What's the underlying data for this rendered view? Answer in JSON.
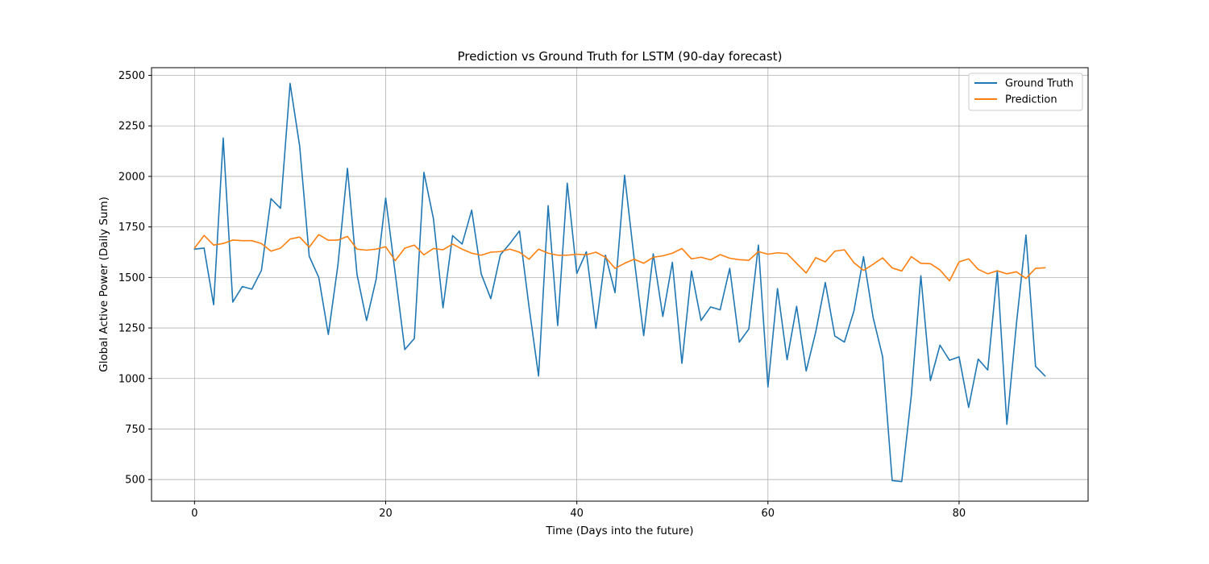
{
  "chart_data": {
    "type": "line",
    "title": "Prediction vs Ground Truth for LSTM (90-day forecast)",
    "xlabel": "Time (Days into the future)",
    "ylabel": "Global Active Power (Daily Sum)",
    "xlim": [
      -4.5,
      93.5
    ],
    "ylim": [
      393,
      2538
    ],
    "x_ticks": [
      0,
      20,
      40,
      60,
      80
    ],
    "y_ticks": [
      500,
      750,
      1000,
      1250,
      1500,
      1750,
      2000,
      2250,
      2500
    ],
    "x_tick_labels": [
      "0",
      "20",
      "40",
      "60",
      "80"
    ],
    "y_tick_labels": [
      "500",
      "750",
      "1000",
      "1250",
      "1500",
      "1750",
      "2000",
      "2250",
      "2500"
    ],
    "grid": true,
    "legend_position": "top-right",
    "series": [
      {
        "name": "Ground Truth",
        "color": "#1f77b4",
        "values": [
          1640,
          1645,
          1365,
          2190,
          1378,
          1455,
          1442,
          1535,
          1890,
          1842,
          2460,
          2150,
          1605,
          1500,
          1218,
          1560,
          2040,
          1515,
          1287,
          1490,
          1893,
          1520,
          1143,
          1198,
          2020,
          1790,
          1350,
          1707,
          1665,
          1833,
          1517,
          1395,
          1612,
          1668,
          1730,
          1355,
          1012,
          1855,
          1262,
          1966,
          1520,
          1627,
          1248,
          1610,
          1425,
          2006,
          1593,
          1212,
          1617,
          1307,
          1575,
          1075,
          1532,
          1287,
          1354,
          1340,
          1545,
          1180,
          1245,
          1660,
          958,
          1445,
          1093,
          1357,
          1037,
          1230,
          1475,
          1210,
          1180,
          1335,
          1603,
          1303,
          1108,
          495,
          490,
          915,
          1508,
          990,
          1165,
          1090,
          1107,
          857,
          1096,
          1042,
          1533,
          773,
          1270,
          1710,
          1060,
          1012
        ]
      },
      {
        "name": "Prediction",
        "color": "#ff7f0e",
        "values": [
          1645,
          1708,
          1660,
          1668,
          1685,
          1682,
          1682,
          1668,
          1630,
          1645,
          1690,
          1700,
          1650,
          1712,
          1684,
          1685,
          1703,
          1640,
          1635,
          1640,
          1652,
          1583,
          1645,
          1660,
          1612,
          1643,
          1637,
          1665,
          1640,
          1620,
          1610,
          1625,
          1628,
          1640,
          1625,
          1590,
          1640,
          1620,
          1610,
          1610,
          1615,
          1612,
          1625,
          1600,
          1545,
          1570,
          1590,
          1570,
          1600,
          1607,
          1620,
          1643,
          1592,
          1600,
          1587,
          1613,
          1595,
          1588,
          1585,
          1628,
          1615,
          1622,
          1618,
          1570,
          1522,
          1598,
          1577,
          1630,
          1637,
          1573,
          1535,
          1565,
          1597,
          1547,
          1532,
          1603,
          1570,
          1568,
          1537,
          1483,
          1577,
          1592,
          1540,
          1518,
          1533,
          1518,
          1528,
          1495,
          1545,
          1548
        ]
      }
    ]
  }
}
